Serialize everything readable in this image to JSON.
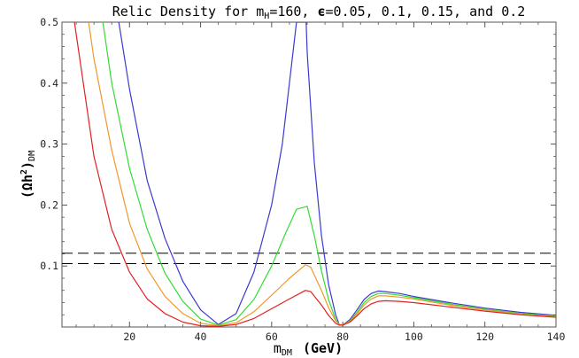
{
  "chart_data": {
    "type": "line",
    "title": {
      "prefix": "Relic Density for m",
      "sub": "H",
      "mid": "=160, ",
      "eps": "ϵ",
      "suffix": "=0.05, 0.1, 0.15, and 0.2"
    },
    "xlabel": {
      "main": "m",
      "sub": "DM",
      "unit": "(GeV)"
    },
    "ylabel": {
      "open": "(Ωh",
      "sup": "2",
      "close": ")",
      "sub": "DM"
    },
    "xlim": [
      1,
      140
    ],
    "ylim": [
      0,
      0.5
    ],
    "xticks": [
      "20",
      "40",
      "60",
      "80",
      "100",
      "120",
      "140"
    ],
    "yticks": [
      "0.1",
      "0.2",
      "0.3",
      "0.4",
      "0.5"
    ],
    "grid": false,
    "reference_lines": [
      0.104,
      0.121
    ],
    "colors": {
      "blue": "#3a3ad0",
      "green": "#33dd33",
      "orange": "#f0982a",
      "red": "#e22020",
      "axis": "#555555",
      "dash": "#000000"
    },
    "series": [
      {
        "color_key": "blue",
        "points": [
          [
            17,
            0.5
          ],
          [
            20,
            0.39
          ],
          [
            25,
            0.24
          ],
          [
            30,
            0.145
          ],
          [
            35,
            0.075
          ],
          [
            40,
            0.028
          ],
          [
            45,
            0.004
          ],
          [
            50,
            0.022
          ],
          [
            55,
            0.09
          ],
          [
            60,
            0.2
          ],
          [
            63,
            0.3
          ],
          [
            65,
            0.4
          ],
          [
            67,
            0.5
          ],
          [
            69.7,
            0.5
          ],
          [
            70,
            0.45
          ],
          [
            72,
            0.27
          ],
          [
            74,
            0.15
          ],
          [
            76,
            0.07
          ],
          [
            78,
            0.02
          ],
          [
            79,
            0.004
          ],
          [
            80,
            0.003
          ],
          [
            82,
            0.012
          ],
          [
            84,
            0.028
          ],
          [
            86,
            0.045
          ],
          [
            88,
            0.055
          ],
          [
            90,
            0.059
          ],
          [
            92,
            0.058
          ],
          [
            96,
            0.055
          ],
          [
            100,
            0.05
          ],
          [
            110,
            0.04
          ],
          [
            120,
            0.031
          ],
          [
            130,
            0.024
          ],
          [
            140,
            0.019
          ]
        ]
      },
      {
        "color_key": "green",
        "points": [
          [
            12.5,
            0.5
          ],
          [
            15,
            0.4
          ],
          [
            20,
            0.26
          ],
          [
            25,
            0.16
          ],
          [
            30,
            0.088
          ],
          [
            35,
            0.042
          ],
          [
            40,
            0.013
          ],
          [
            45,
            0.003
          ],
          [
            50,
            0.012
          ],
          [
            55,
            0.045
          ],
          [
            60,
            0.1
          ],
          [
            64,
            0.155
          ],
          [
            67,
            0.193
          ],
          [
            70,
            0.198
          ],
          [
            72,
            0.15
          ],
          [
            74,
            0.092
          ],
          [
            76,
            0.045
          ],
          [
            78,
            0.012
          ],
          [
            79,
            0.004
          ],
          [
            80,
            0.003
          ],
          [
            82,
            0.01
          ],
          [
            84,
            0.024
          ],
          [
            86,
            0.04
          ],
          [
            88,
            0.05
          ],
          [
            90,
            0.055
          ],
          [
            92,
            0.055
          ],
          [
            96,
            0.052
          ],
          [
            100,
            0.048
          ],
          [
            110,
            0.038
          ],
          [
            120,
            0.029
          ],
          [
            130,
            0.022
          ],
          [
            140,
            0.018
          ]
        ]
      },
      {
        "color_key": "orange",
        "points": [
          [
            8.5,
            0.5
          ],
          [
            10,
            0.44
          ],
          [
            15,
            0.29
          ],
          [
            20,
            0.17
          ],
          [
            25,
            0.095
          ],
          [
            30,
            0.05
          ],
          [
            35,
            0.022
          ],
          [
            40,
            0.006
          ],
          [
            45,
            0.002
          ],
          [
            50,
            0.007
          ],
          [
            55,
            0.025
          ],
          [
            60,
            0.052
          ],
          [
            65,
            0.08
          ],
          [
            69.5,
            0.102
          ],
          [
            71,
            0.098
          ],
          [
            74,
            0.06
          ],
          [
            76,
            0.032
          ],
          [
            78,
            0.01
          ],
          [
            79,
            0.004
          ],
          [
            80,
            0.003
          ],
          [
            82,
            0.009
          ],
          [
            84,
            0.021
          ],
          [
            86,
            0.036
          ],
          [
            88,
            0.046
          ],
          [
            90,
            0.051
          ],
          [
            92,
            0.051
          ],
          [
            96,
            0.049
          ],
          [
            100,
            0.046
          ],
          [
            110,
            0.036
          ],
          [
            120,
            0.028
          ],
          [
            130,
            0.021
          ],
          [
            140,
            0.017
          ]
        ]
      },
      {
        "color_key": "red",
        "points": [
          [
            4.5,
            0.5
          ],
          [
            6,
            0.44
          ],
          [
            10,
            0.28
          ],
          [
            15,
            0.16
          ],
          [
            20,
            0.09
          ],
          [
            25,
            0.046
          ],
          [
            30,
            0.022
          ],
          [
            35,
            0.008
          ],
          [
            40,
            0.002
          ],
          [
            45,
            0.001
          ],
          [
            50,
            0.004
          ],
          [
            55,
            0.014
          ],
          [
            60,
            0.03
          ],
          [
            65,
            0.046
          ],
          [
            69.5,
            0.06
          ],
          [
            71,
            0.058
          ],
          [
            74,
            0.036
          ],
          [
            76,
            0.019
          ],
          [
            78,
            0.006
          ],
          [
            79,
            0.003
          ],
          [
            80,
            0.003
          ],
          [
            82,
            0.008
          ],
          [
            84,
            0.018
          ],
          [
            86,
            0.03
          ],
          [
            88,
            0.038
          ],
          [
            90,
            0.042
          ],
          [
            92,
            0.043
          ],
          [
            96,
            0.042
          ],
          [
            100,
            0.04
          ],
          [
            110,
            0.033
          ],
          [
            120,
            0.026
          ],
          [
            130,
            0.02
          ],
          [
            140,
            0.016
          ]
        ]
      }
    ]
  }
}
